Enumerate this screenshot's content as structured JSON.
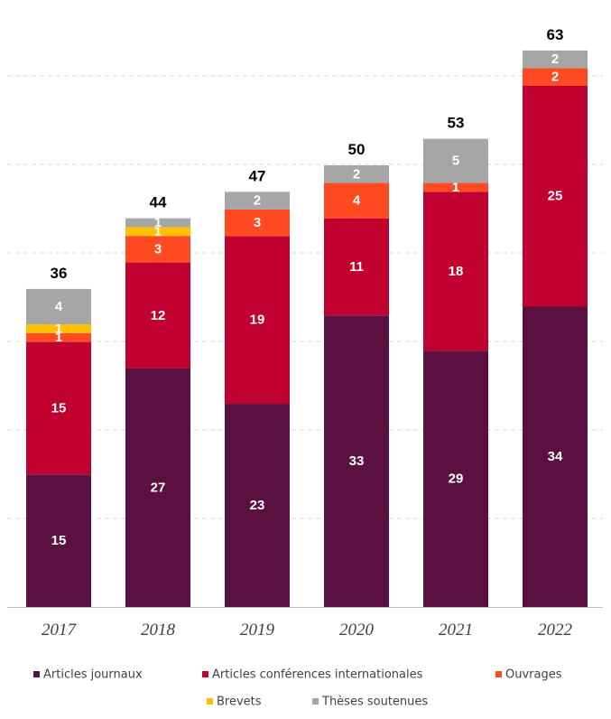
{
  "chart_data": {
    "type": "bar",
    "stacked": true,
    "categories": [
      "2017",
      "2018",
      "2019",
      "2020",
      "2021",
      "2022"
    ],
    "series": [
      {
        "name": "Articles journaux",
        "color": "#5a1040",
        "values": [
          15,
          27,
          23,
          33,
          29,
          34
        ]
      },
      {
        "name": "Articles conférences internationales",
        "color": "#c0002f",
        "values": [
          15,
          12,
          19,
          11,
          18,
          25
        ]
      },
      {
        "name": "Ouvrages",
        "color": "#ff4a22",
        "values": [
          1,
          3,
          3,
          4,
          1,
          2
        ]
      },
      {
        "name": "Brevets",
        "color": "#ffc000",
        "values": [
          1,
          1,
          0,
          0,
          0,
          0
        ]
      },
      {
        "name": "Thèses soutenues",
        "color": "#a6a6a6",
        "values": [
          4,
          1,
          2,
          2,
          5,
          2
        ]
      }
    ],
    "totals": [
      36,
      44,
      47,
      50,
      53,
      63
    ],
    "title": "",
    "xlabel": "",
    "ylabel": "",
    "ylim": [
      0,
      63
    ],
    "grid": true,
    "legend_position": "bottom"
  }
}
